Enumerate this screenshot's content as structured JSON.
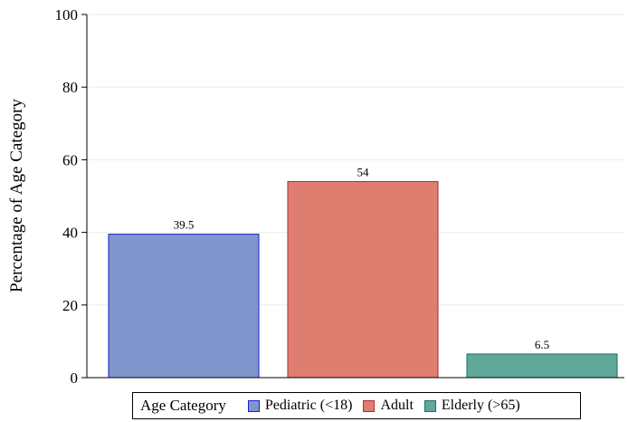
{
  "chart_data": {
    "type": "bar",
    "ylabel": "Percentage of Age Category",
    "xlabel": "",
    "ylim": [
      0,
      100
    ],
    "yticks": [
      0,
      20,
      40,
      60,
      80,
      100
    ],
    "grid": true,
    "legend_placement": "bottom",
    "legend_title": "Age Category",
    "categories": [
      "Pediatric (<18)",
      "Adult",
      "Elderly (>65)"
    ],
    "values": [
      39.5,
      54,
      6.5
    ],
    "value_labels": [
      "39.5",
      "54",
      "6.5"
    ],
    "colors": [
      "#7e96cb",
      "#df7e70",
      "#5fa89a"
    ],
    "edge_colors": [
      "#1f1fd0",
      "#b22a32",
      "#1d6e5c"
    ]
  }
}
